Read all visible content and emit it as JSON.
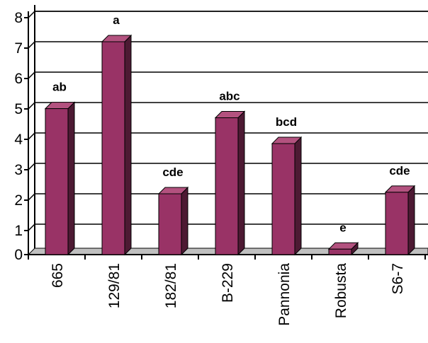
{
  "chart_data": {
    "type": "bar",
    "categories": [
      "665",
      "129/81",
      "182/81",
      "B-229",
      "Pannonia",
      "Robusta",
      "S6-7"
    ],
    "values": [
      4.8,
      7.0,
      2.0,
      4.5,
      3.65,
      0.18,
      2.05
    ],
    "data_labels": [
      "ab",
      "a",
      "cde",
      "abc",
      "bcd",
      "e",
      "cde"
    ],
    "title": "",
    "xlabel": "",
    "ylabel": "",
    "ylim": [
      0,
      8
    ],
    "yticks": [
      "0",
      "1",
      "2",
      "3",
      "4",
      "5",
      "6",
      "7",
      "8"
    ],
    "grid": true,
    "legend": "none",
    "style": "3d",
    "colors": {
      "bar_front": "#993366",
      "bar_side": "#4d1a33",
      "bar_top": "#b3527f",
      "axis": "#000000",
      "floor": "#c0c0c0"
    }
  }
}
